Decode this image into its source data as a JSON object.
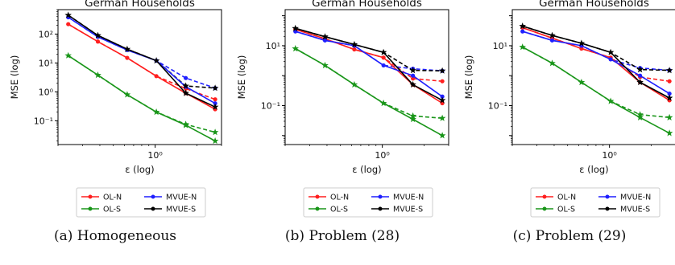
{
  "figure": {
    "captions": [
      "(a) Homogeneous",
      "(b) Problem (28)",
      "(c) Problem (29)"
    ]
  },
  "legend_entries": [
    "OL-N",
    "MVUE-N",
    "OL-S",
    "MVUE-S"
  ],
  "colors": {
    "OL-N": "#ff1f1f",
    "MVUE-N": "#1f1fff",
    "OL-S": "#1a961a",
    "MVUE-S": "#000000"
  },
  "chart_data": [
    {
      "type": "line",
      "title": "German Households",
      "xlabel": "ε (log)",
      "ylabel": "MSE (log)",
      "xscale": "log",
      "yscale": "log",
      "xlim": [
        0.2,
        3.0
      ],
      "ylim": [
        0.015,
        700
      ],
      "xticks": [
        1
      ],
      "xtick_labels": [
        "10⁰"
      ],
      "yticks": [
        0.1,
        1,
        10,
        100
      ],
      "ytick_labels": [
        "10⁻¹",
        "10⁰",
        "10¹",
        "10²"
      ],
      "legend": "below",
      "x": [
        0.237,
        0.387,
        0.629,
        1.02,
        1.66,
        2.7
      ],
      "series": [
        {
          "name": "OL-N",
          "marker": "dot",
          "values": [
            220,
            55,
            15,
            3.5,
            0.9,
            0.25
          ],
          "dashed_values": [
            220,
            55,
            15,
            3.5,
            1.3,
            0.55
          ]
        },
        {
          "name": "MVUE-N",
          "marker": "dot",
          "values": [
            380,
            80,
            28,
            12,
            1.5,
            0.4
          ],
          "dashed_values": [
            380,
            80,
            28,
            12,
            3.0,
            1.35
          ]
        },
        {
          "name": "OL-S",
          "marker": "star",
          "values": [
            18,
            3.8,
            0.8,
            0.2,
            0.07,
            0.02
          ],
          "dashed_values": [
            18,
            3.8,
            0.8,
            0.2,
            0.075,
            0.04
          ]
        },
        {
          "name": "MVUE-S",
          "marker": "star",
          "values": [
            450,
            90,
            30,
            12,
            0.9,
            0.3
          ],
          "dashed_values": [
            450,
            90,
            30,
            12,
            1.6,
            1.35
          ]
        }
      ]
    },
    {
      "type": "line",
      "title": "German Households",
      "xlabel": "ε (log)",
      "ylabel": "MSE (log)",
      "xscale": "log",
      "yscale": "log",
      "xlim": [
        0.2,
        3.0
      ],
      "ylim": [
        0.005,
        160
      ],
      "xticks": [
        1
      ],
      "xtick_labels": [
        "10⁰"
      ],
      "yticks": [
        0.1,
        10
      ],
      "ytick_labels": [
        "10⁻¹",
        "10¹"
      ],
      "legend": "below",
      "x": [
        0.237,
        0.387,
        0.629,
        1.02,
        1.66,
        2.7
      ],
      "series": [
        {
          "name": "OL-N",
          "marker": "dot",
          "values": [
            35,
            17,
            7.5,
            4,
            0.5,
            0.12
          ],
          "dashed_values": [
            35,
            17,
            7.5,
            4,
            0.8,
            0.65
          ]
        },
        {
          "name": "MVUE-N",
          "marker": "dot",
          "values": [
            30,
            15,
            10,
            2.2,
            1,
            0.2
          ],
          "dashed_values": [
            30,
            15,
            10,
            2.2,
            1.7,
            1.45
          ]
        },
        {
          "name": "OL-S",
          "marker": "star",
          "values": [
            8,
            2.2,
            0.5,
            0.12,
            0.035,
            0.01
          ],
          "dashed_values": [
            8,
            2.2,
            0.5,
            0.12,
            0.045,
            0.038
          ]
        },
        {
          "name": "MVUE-S",
          "marker": "star",
          "values": [
            38,
            20,
            11,
            6,
            0.5,
            0.15
          ],
          "dashed_values": [
            38,
            20,
            11,
            6,
            1.5,
            1.45
          ]
        }
      ]
    },
    {
      "type": "line",
      "title": "German Households",
      "xlabel": "ε (log)",
      "ylabel": "MSE (log)",
      "xscale": "log",
      "yscale": "log",
      "xlim": [
        0.2,
        3.0
      ],
      "ylim": [
        0.005,
        160
      ],
      "xticks": [
        1
      ],
      "xtick_labels": [
        "10⁰"
      ],
      "yticks": [
        0.1,
        10
      ],
      "ytick_labels": [
        "10⁻¹",
        "10¹"
      ],
      "legend": "below",
      "x": [
        0.237,
        0.387,
        0.629,
        1.02,
        1.66,
        2.7
      ],
      "series": [
        {
          "name": "OL-N",
          "marker": "dot",
          "values": [
            40,
            18,
            8,
            4,
            0.6,
            0.15
          ],
          "dashed_values": [
            40,
            18,
            8,
            4,
            0.9,
            0.65
          ]
        },
        {
          "name": "MVUE-N",
          "marker": "dot",
          "values": [
            30,
            15,
            10,
            3.5,
            1,
            0.25
          ],
          "dashed_values": [
            30,
            15,
            10,
            3.5,
            1.8,
            1.5
          ]
        },
        {
          "name": "OL-S",
          "marker": "star",
          "values": [
            9,
            2.6,
            0.6,
            0.14,
            0.04,
            0.012
          ],
          "dashed_values": [
            9,
            2.6,
            0.6,
            0.14,
            0.05,
            0.04
          ]
        },
        {
          "name": "MVUE-S",
          "marker": "star",
          "values": [
            45,
            22,
            12,
            6,
            0.6,
            0.18
          ],
          "dashed_values": [
            45,
            22,
            12,
            6,
            1.6,
            1.5
          ]
        }
      ]
    }
  ]
}
